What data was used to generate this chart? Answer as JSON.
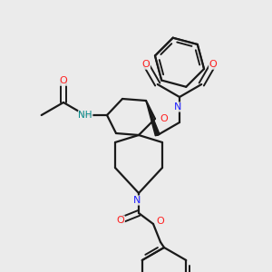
{
  "bg_color": "#ebebeb",
  "bond_color": "#1a1a1a",
  "N_color": "#2020ff",
  "O_color": "#ff2020",
  "NH_color": "#008888",
  "line_width": 1.6,
  "figsize": [
    3.0,
    3.0
  ],
  "dpi": 100,
  "xlim": [
    0,
    300
  ],
  "ylim": [
    0,
    300
  ]
}
